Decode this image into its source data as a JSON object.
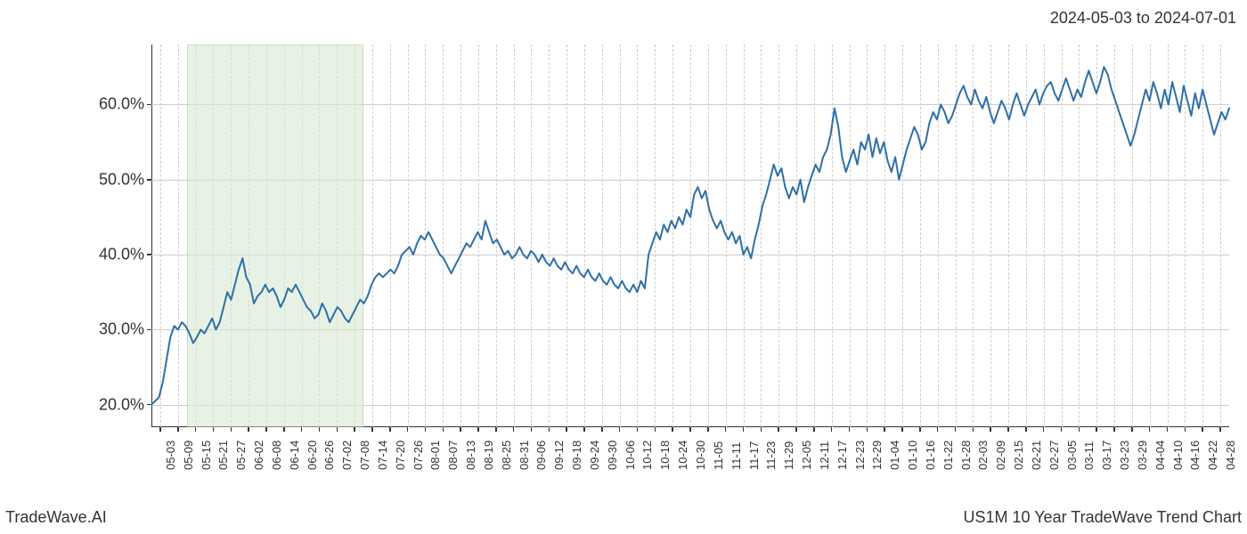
{
  "header": {
    "date_range": "2024-05-03 to 2024-07-01"
  },
  "footer": {
    "left": "TradeWave.AI",
    "right": "US1M 10 Year TradeWave Trend Chart"
  },
  "chart": {
    "type": "line",
    "background_color": "#ffffff",
    "grid_color": "#cccccc",
    "axis_color": "#333333",
    "line_color": "#2f6fa7",
    "line_width": 2,
    "highlight_band_color": "#d9ead3",
    "highlight_band_border": "#a8c996",
    "highlight_start_index": 2,
    "highlight_end_index": 12,
    "ylim": [
      17,
      68
    ],
    "yticks": [
      20,
      30,
      40,
      50,
      60
    ],
    "ytick_labels": [
      "20.0%",
      "30.0%",
      "40.0%",
      "50.0%",
      "60.0%"
    ],
    "ytick_fontsize": 18,
    "xtick_fontsize": 13,
    "x_labels": [
      "05-03",
      "05-09",
      "05-15",
      "05-21",
      "05-27",
      "06-02",
      "06-08",
      "06-14",
      "06-20",
      "06-26",
      "07-02",
      "07-08",
      "07-14",
      "07-20",
      "07-26",
      "08-01",
      "08-07",
      "08-13",
      "08-19",
      "08-25",
      "08-31",
      "09-06",
      "09-12",
      "09-18",
      "09-24",
      "09-30",
      "10-06",
      "10-12",
      "10-18",
      "10-24",
      "10-30",
      "11-05",
      "11-11",
      "11-17",
      "11-23",
      "11-29",
      "12-05",
      "12-11",
      "12-17",
      "12-23",
      "12-29",
      "01-04",
      "01-10",
      "01-16",
      "01-22",
      "01-28",
      "02-03",
      "02-09",
      "02-15",
      "02-21",
      "02-27",
      "03-05",
      "03-11",
      "03-17",
      "03-23",
      "03-29",
      "04-04",
      "04-10",
      "04-16",
      "04-22",
      "04-28"
    ],
    "series": [
      20.0,
      20.5,
      21.0,
      23.0,
      26.0,
      29.0,
      30.5,
      30.0,
      31.0,
      30.5,
      29.5,
      28.2,
      29.0,
      30.0,
      29.5,
      30.5,
      31.5,
      30.0,
      31.0,
      33.0,
      35.0,
      34.0,
      36.0,
      38.0,
      39.5,
      37.0,
      36.0,
      33.5,
      34.5,
      35.0,
      36.0,
      35.0,
      35.5,
      34.5,
      33.0,
      34.0,
      35.5,
      35.0,
      36.0,
      35.0,
      34.0,
      33.0,
      32.5,
      31.5,
      32.0,
      33.5,
      32.5,
      31.0,
      32.0,
      33.0,
      32.5,
      31.5,
      31.0,
      32.0,
      33.0,
      34.0,
      33.5,
      34.5,
      36.0,
      37.0,
      37.5,
      37.0,
      37.5,
      38.0,
      37.5,
      38.5,
      40.0,
      40.5,
      41.0,
      40.0,
      41.5,
      42.5,
      42.0,
      43.0,
      42.0,
      41.0,
      40.0,
      39.5,
      38.5,
      37.5,
      38.5,
      39.5,
      40.5,
      41.5,
      41.0,
      42.0,
      43.0,
      42.0,
      44.5,
      43.0,
      41.5,
      42.0,
      41.0,
      40.0,
      40.5,
      39.5,
      40.0,
      41.0,
      40.0,
      39.5,
      40.5,
      40.0,
      39.0,
      40.0,
      39.0,
      38.5,
      39.5,
      38.5,
      38.0,
      39.0,
      38.0,
      37.5,
      38.5,
      37.5,
      37.0,
      38.0,
      37.0,
      36.5,
      37.5,
      36.5,
      36.0,
      37.0,
      36.0,
      35.5,
      36.5,
      35.5,
      35.0,
      36.0,
      35.0,
      36.5,
      35.5,
      40.0,
      41.5,
      43.0,
      42.0,
      44.0,
      43.0,
      44.5,
      43.5,
      45.0,
      44.0,
      46.0,
      45.0,
      48.0,
      49.0,
      47.5,
      48.5,
      46.0,
      44.5,
      43.5,
      44.5,
      43.0,
      42.0,
      43.0,
      41.5,
      42.5,
      40.0,
      41.0,
      39.5,
      42.0,
      44.0,
      46.5,
      48.0,
      50.0,
      52.0,
      50.5,
      51.5,
      49.0,
      47.5,
      49.0,
      48.0,
      50.0,
      47.0,
      49.0,
      50.5,
      52.0,
      51.0,
      53.0,
      54.0,
      56.0,
      59.5,
      57.0,
      53.0,
      51.0,
      52.5,
      54.0,
      52.0,
      55.0,
      54.0,
      56.0,
      53.0,
      55.5,
      53.5,
      55.0,
      52.5,
      51.0,
      53.0,
      50.0,
      52.0,
      54.0,
      55.5,
      57.0,
      56.0,
      54.0,
      55.0,
      57.5,
      59.0,
      58.0,
      60.0,
      59.0,
      57.5,
      58.5,
      60.0,
      61.5,
      62.5,
      61.0,
      60.0,
      62.0,
      60.5,
      59.5,
      61.0,
      59.0,
      57.5,
      59.0,
      60.5,
      59.5,
      58.0,
      60.0,
      61.5,
      60.0,
      58.5,
      60.0,
      61.0,
      62.0,
      60.0,
      61.5,
      62.5,
      63.0,
      61.5,
      60.5,
      62.0,
      63.5,
      62.0,
      60.5,
      62.0,
      61.0,
      63.0,
      64.5,
      63.0,
      61.5,
      63.0,
      65.0,
      64.0,
      62.0,
      60.5,
      59.0,
      57.5,
      56.0,
      54.5,
      56.0,
      58.0,
      60.0,
      62.0,
      60.5,
      63.0,
      61.5,
      59.5,
      62.0,
      60.0,
      63.0,
      61.0,
      59.0,
      62.5,
      60.5,
      58.5,
      61.5,
      59.5,
      62.0,
      60.0,
      58.0,
      56.0,
      57.5,
      59.0,
      58.0,
      59.5
    ]
  }
}
